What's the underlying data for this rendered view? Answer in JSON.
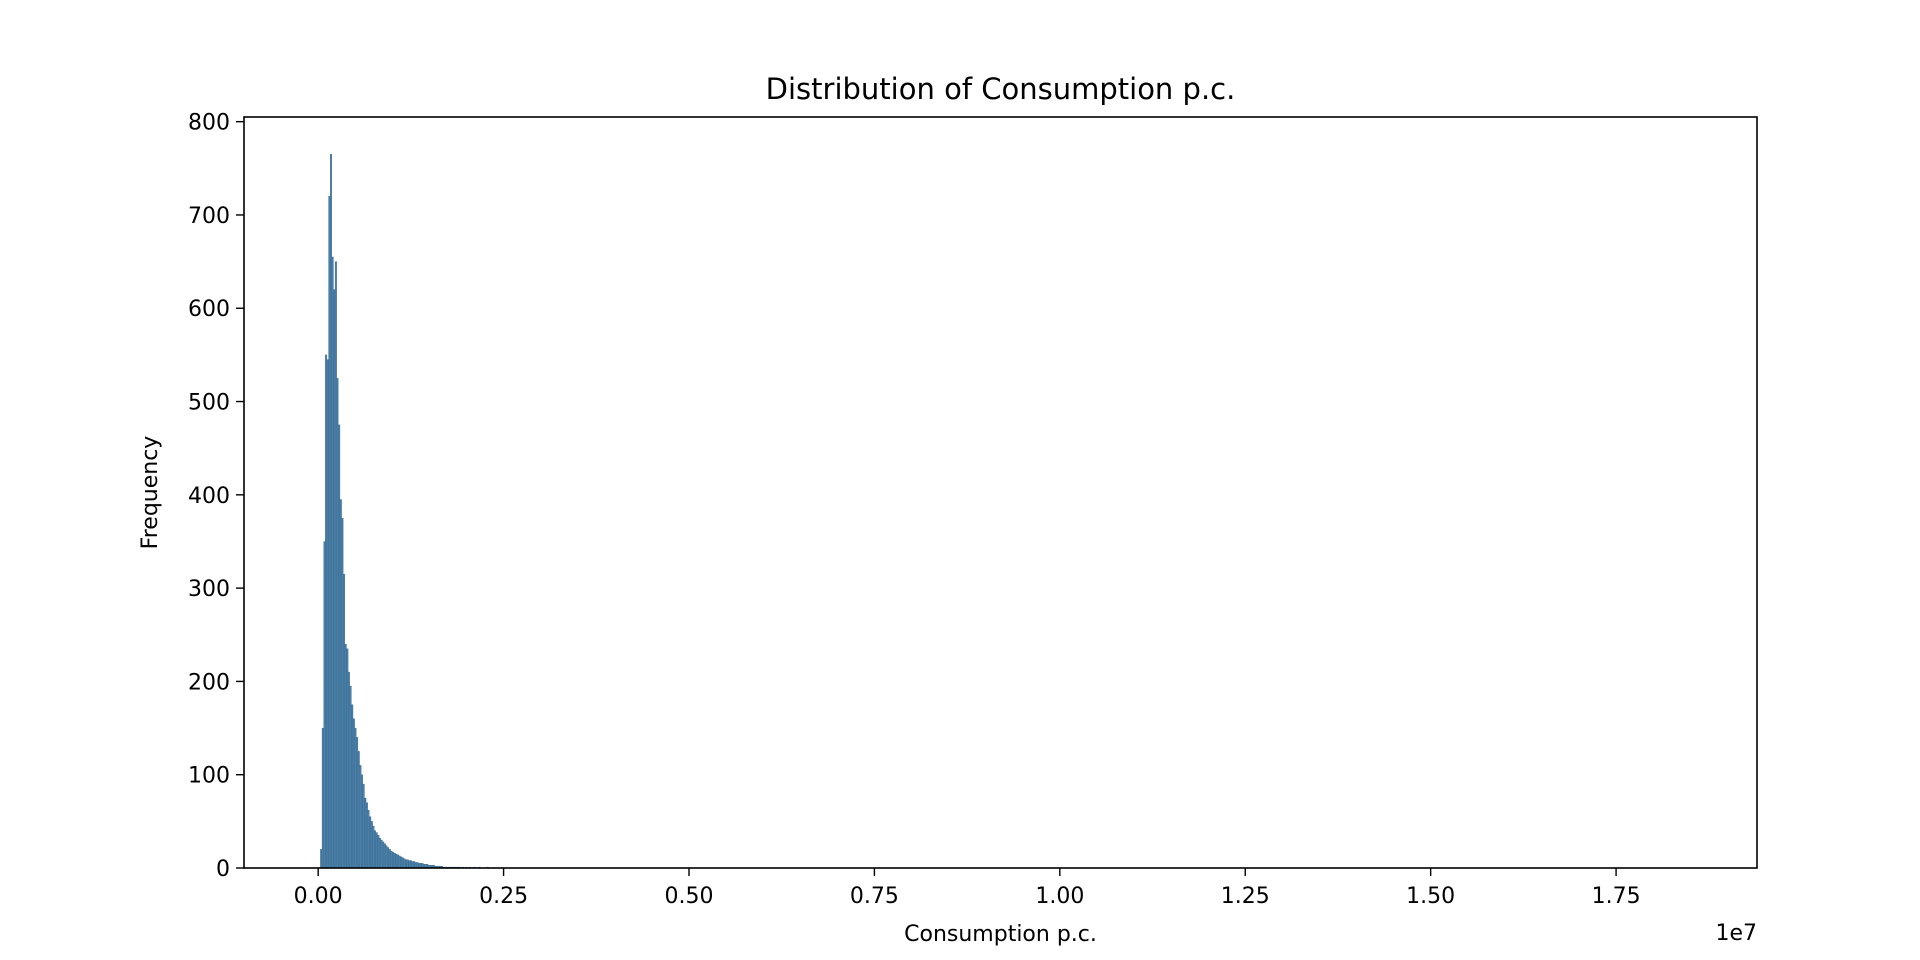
{
  "chart_data": {
    "type": "bar",
    "title": "Distribution of Consumption p.c.",
    "xlabel": "Consumption p.c.",
    "ylabel": "Frequency",
    "x_offset_label": "1e7",
    "xlim": [
      -0.1,
      1.94
    ],
    "ylim": [
      0,
      805
    ],
    "x_unit_scale": 10000000,
    "grid": false,
    "legend": "none",
    "bar_color": "#4a7fa8",
    "bar_edge_color": "#2f5f86",
    "x_ticks": [
      {
        "value": 0.0,
        "label": "0.00"
      },
      {
        "value": 0.25,
        "label": "0.25"
      },
      {
        "value": 0.5,
        "label": "0.50"
      },
      {
        "value": 0.75,
        "label": "0.75"
      },
      {
        "value": 1.0,
        "label": "1.00"
      },
      {
        "value": 1.25,
        "label": "1.25"
      },
      {
        "value": 1.5,
        "label": "1.50"
      },
      {
        "value": 1.75,
        "label": "1.75"
      }
    ],
    "y_ticks": [
      {
        "value": 0,
        "label": "0"
      },
      {
        "value": 100,
        "label": "100"
      },
      {
        "value": 200,
        "label": "200"
      },
      {
        "value": 300,
        "label": "300"
      },
      {
        "value": 400,
        "label": "400"
      },
      {
        "value": 500,
        "label": "500"
      },
      {
        "value": 600,
        "label": "600"
      },
      {
        "value": 700,
        "label": "700"
      },
      {
        "value": 800,
        "label": "800"
      }
    ],
    "bin_start": 0.003,
    "bin_width": 0.0022,
    "values": [
      20,
      150,
      350,
      550,
      545,
      720,
      765,
      655,
      620,
      650,
      525,
      475,
      395,
      375,
      315,
      240,
      235,
      210,
      195,
      175,
      160,
      150,
      140,
      125,
      110,
      100,
      90,
      75,
      70,
      62,
      55,
      50,
      45,
      40,
      38,
      35,
      32,
      30,
      28,
      26,
      24,
      22,
      20,
      18,
      17,
      16,
      15,
      14,
      13,
      12,
      11,
      10,
      9,
      9,
      8,
      8,
      7,
      7,
      6,
      6,
      5,
      5,
      5,
      4,
      4,
      4,
      3,
      3,
      3,
      3,
      2,
      2,
      2,
      2,
      2,
      1,
      1,
      1,
      1,
      1,
      1,
      1,
      1,
      1,
      1,
      1,
      0,
      1,
      0,
      1,
      0,
      1,
      0,
      0,
      1,
      0,
      0,
      1,
      0,
      0,
      0,
      0,
      1,
      0,
      0,
      0,
      0,
      0,
      0,
      0,
      0,
      0,
      0,
      0,
      0,
      0,
      0,
      0,
      0,
      0,
      0,
      0,
      0,
      0,
      0,
      0,
      0,
      0,
      0,
      0,
      0,
      0,
      0,
      0,
      0,
      0,
      0,
      0,
      0,
      0
    ]
  }
}
